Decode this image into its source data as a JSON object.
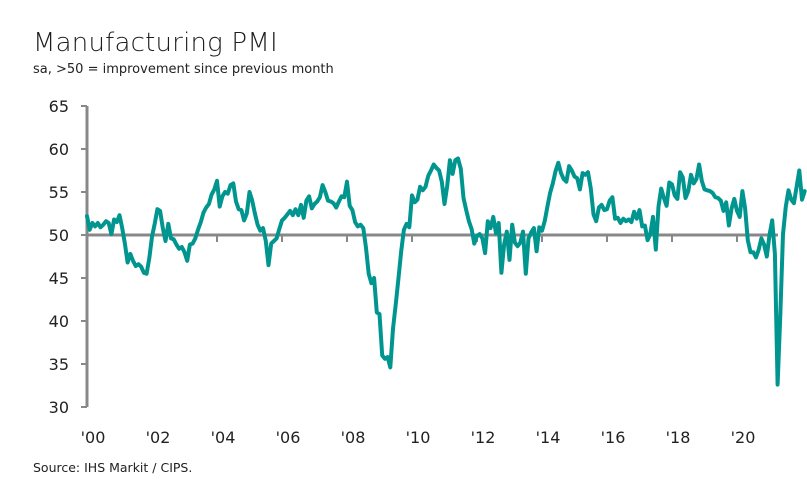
{
  "chart_data": {
    "type": "line",
    "title": "Manufacturing PMI",
    "subtitle": "sa, >50 = improvement since previous month",
    "source": "Source: IHS Markit / CIPS.",
    "xlabel": "",
    "ylabel": "",
    "ylim": [
      30,
      65
    ],
    "yticks": [
      30,
      35,
      40,
      45,
      50,
      55,
      60,
      65
    ],
    "xlim": [
      2000,
      2021.2
    ],
    "xticks": [
      2000,
      2002,
      2004,
      2006,
      2008,
      2010,
      2012,
      2014,
      2016,
      2018,
      2020
    ],
    "xtick_labels": [
      "'00",
      "'02",
      "'04",
      "'06",
      "'08",
      "'10",
      "'12",
      "'14",
      "'16",
      "'18",
      "'20"
    ],
    "reference_line": 50,
    "grid": false,
    "legend": "none",
    "line_color": "#00968f",
    "axis_color": "#888888",
    "series": [
      {
        "name": "Manufacturing PMI",
        "start": "2000-01",
        "frequency": "monthly",
        "values": [
          52.2,
          50.6,
          51.4,
          51.0,
          51.4,
          50.9,
          51.2,
          51.6,
          51.4,
          50.1,
          51.8,
          51.5,
          52.3,
          50.8,
          49.0,
          46.8,
          47.8,
          47.0,
          46.4,
          46.6,
          46.3,
          45.6,
          45.5,
          47.3,
          49.8,
          51.3,
          53.0,
          52.8,
          50.8,
          49.3,
          51.3,
          49.6,
          49.5,
          48.9,
          48.4,
          48.6,
          48.0,
          47.0,
          48.9,
          49.0,
          49.6,
          50.6,
          51.5,
          52.6,
          53.2,
          53.6,
          54.7,
          55.3,
          56.3,
          53.3,
          54.5,
          55.0,
          54.8,
          55.8,
          56.0,
          53.9,
          53.0,
          52.9,
          51.7,
          52.5,
          55.0,
          54.0,
          52.5,
          51.2,
          50.5,
          50.8,
          49.3,
          46.5,
          49.0,
          49.3,
          49.6,
          50.7,
          51.7,
          52.0,
          52.4,
          52.8,
          52.3,
          53.0,
          52.3,
          53.5,
          52.0,
          54.0,
          54.5,
          53.1,
          53.6,
          53.9,
          54.4,
          55.8,
          55.0,
          54.0,
          53.9,
          53.7,
          53.2,
          53.9,
          54.5,
          54.4,
          56.2,
          53.4,
          52.9,
          51.5,
          51.0,
          51.2,
          50.8,
          48.5,
          45.5,
          44.4,
          45.0,
          41.0,
          40.8,
          36.0,
          35.6,
          35.8,
          34.6,
          39.1,
          42.0,
          45.0,
          48.1,
          50.6,
          51.3,
          50.9,
          54.6,
          53.8,
          54.1,
          55.6,
          55.2,
          55.6,
          56.9,
          57.5,
          58.2,
          57.8,
          57.5,
          56.2,
          53.6,
          55.7,
          58.7,
          57.1,
          58.7,
          58.9,
          57.7,
          54.3,
          52.9,
          51.6,
          50.7,
          49.0,
          49.9,
          50.1,
          49.6,
          47.9,
          51.6,
          50.8,
          52.1,
          50.2,
          51.4,
          45.6,
          48.9,
          50.4,
          47.1,
          51.2,
          49.1,
          48.7,
          49.1,
          50.4,
          45.5,
          49.6,
          50.3,
          50.8,
          48.1,
          50.9,
          50.5,
          51.6,
          53.3,
          54.9,
          56.0,
          57.4,
          58.4,
          57.2,
          56.5,
          56.2,
          58.0,
          57.5,
          56.8,
          56.6,
          55.3,
          57.2,
          57.0,
          57.3,
          55.4,
          52.4,
          51.6,
          53.2,
          53.5,
          52.9,
          53.0,
          54.0,
          54.4,
          51.9,
          52.0,
          51.4,
          51.9,
          51.6,
          51.8,
          51.5,
          52.7,
          51.9,
          52.9,
          51.0,
          51.1,
          49.4,
          50.1,
          52.1,
          48.3,
          53.3,
          55.4,
          54.3,
          53.4,
          56.1,
          55.9,
          54.6,
          54.2,
          57.3,
          56.7,
          54.3,
          55.1,
          57.0,
          56.0,
          56.5,
          58.2,
          56.3,
          55.3,
          55.2,
          55.1,
          54.9,
          54.4,
          54.3,
          54.0,
          52.8,
          53.8,
          51.1,
          53.1,
          54.2,
          52.8,
          52.1,
          55.1,
          53.1,
          49.4,
          48.0,
          48.0,
          47.4,
          48.3,
          49.6,
          48.9,
          47.5,
          50.0,
          51.7,
          47.8,
          32.6,
          40.7,
          50.1,
          53.3,
          55.2,
          54.1,
          53.7,
          55.6,
          57.5,
          54.1,
          55.1
        ]
      }
    ]
  }
}
